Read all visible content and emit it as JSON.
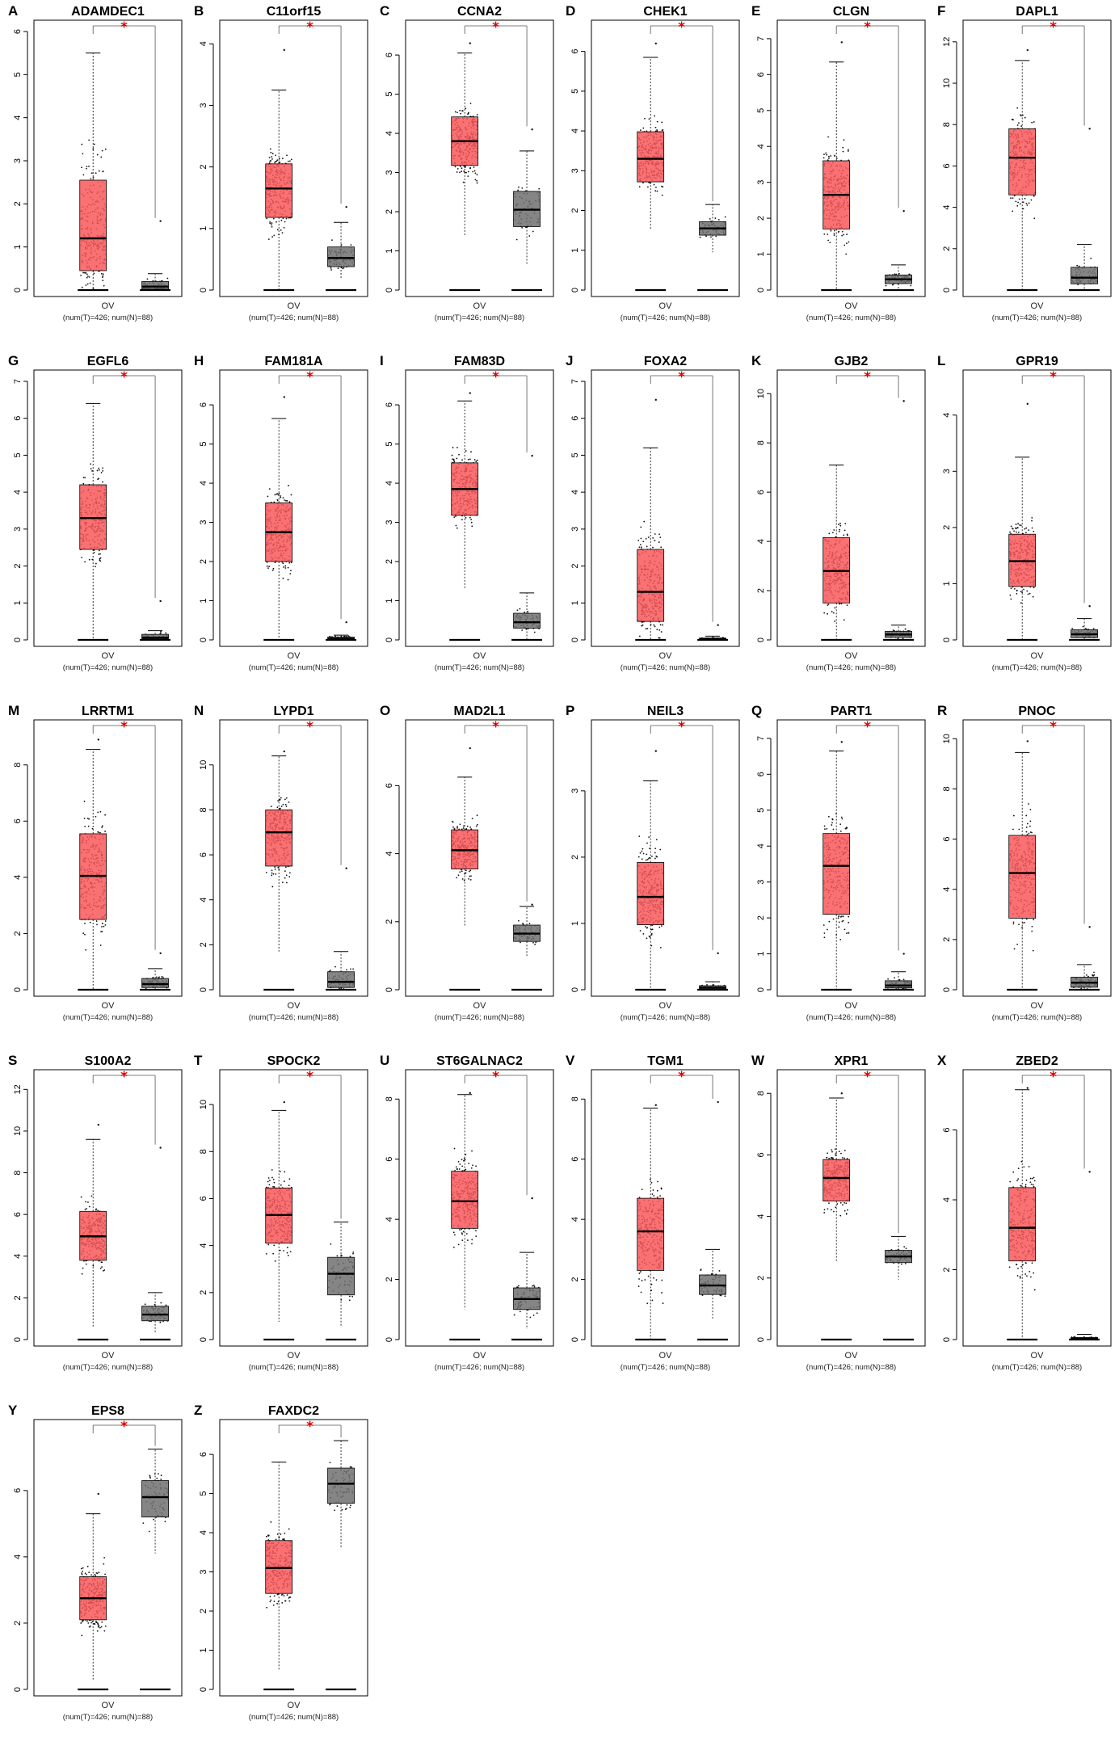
{
  "figure": {
    "accent_tumor": "#f8585a",
    "accent_normal": "#707070",
    "significance_mark": "*",
    "significance_color": "#e00000"
  },
  "chart_data": [
    {
      "label": "A",
      "type": "box",
      "title": "ADAMDEC1",
      "xlabel": "OV",
      "counts": "(num(T)=426; num(N)=88)",
      "ylim": [
        0,
        6
      ],
      "yticks": [
        0,
        1,
        2,
        3,
        4,
        5,
        6
      ],
      "series": [
        {
          "name": "T",
          "q1": 0.45,
          "median": 1.2,
          "q3": 2.55,
          "lower": 0,
          "upper": 5.5,
          "max": 5.5
        },
        {
          "name": "N",
          "q1": 0.02,
          "median": 0.08,
          "q3": 0.2,
          "lower": 0,
          "upper": 0.38,
          "max": 1.6
        }
      ]
    },
    {
      "label": "B",
      "type": "box",
      "title": "C11orf15",
      "xlabel": "OV",
      "counts": "(num(T)=426; num(N)=88)",
      "ylim": [
        0,
        4.2
      ],
      "yticks": [
        0,
        1,
        2,
        3,
        4
      ],
      "series": [
        {
          "name": "T",
          "q1": 1.18,
          "median": 1.65,
          "q3": 2.05,
          "lower": 0,
          "upper": 3.25,
          "max": 3.9
        },
        {
          "name": "N",
          "q1": 0.38,
          "median": 0.52,
          "q3": 0.7,
          "lower": 0.18,
          "upper": 1.1,
          "max": 1.35
        }
      ]
    },
    {
      "label": "C",
      "type": "box",
      "title": "CCNA2",
      "xlabel": "OV",
      "counts": "(num(T)=426; num(N)=88)",
      "ylim": [
        0,
        6.6
      ],
      "yticks": [
        0,
        1,
        2,
        3,
        4,
        5,
        6
      ],
      "series": [
        {
          "name": "T",
          "q1": 3.18,
          "median": 3.8,
          "q3": 4.42,
          "lower": 1.4,
          "upper": 6.05,
          "max": 6.3
        },
        {
          "name": "N",
          "q1": 1.62,
          "median": 2.05,
          "q3": 2.52,
          "lower": 0.65,
          "upper": 3.55,
          "max": 4.1
        }
      ]
    },
    {
      "label": "D",
      "type": "box",
      "title": "CHEK1",
      "xlabel": "OV",
      "counts": "(num(T)=426; num(N)=88)",
      "ylim": [
        0,
        6.5
      ],
      "yticks": [
        0,
        1,
        2,
        3,
        4,
        5,
        6
      ],
      "series": [
        {
          "name": "T",
          "q1": 2.72,
          "median": 3.3,
          "q3": 3.98,
          "lower": 1.5,
          "upper": 5.85,
          "max": 6.2
        },
        {
          "name": "N",
          "q1": 1.38,
          "median": 1.55,
          "q3": 1.72,
          "lower": 0.95,
          "upper": 2.15,
          "max": 2.15
        }
      ]
    },
    {
      "label": "E",
      "type": "box",
      "title": "CLGN",
      "xlabel": "OV",
      "counts": "(num(T)=426; num(N)=88)",
      "ylim": [
        0,
        7.2
      ],
      "yticks": [
        0,
        1,
        2,
        3,
        4,
        5,
        6,
        7
      ],
      "series": [
        {
          "name": "T",
          "q1": 1.7,
          "median": 2.65,
          "q3": 3.6,
          "lower": 0,
          "upper": 6.35,
          "max": 6.9
        },
        {
          "name": "N",
          "q1": 0.18,
          "median": 0.3,
          "q3": 0.42,
          "lower": 0,
          "upper": 0.7,
          "max": 2.2
        }
      ]
    },
    {
      "label": "F",
      "type": "box",
      "title": "DAPL1",
      "xlabel": "OV",
      "counts": "(num(T)=426; num(N)=88)",
      "ylim": [
        0,
        12.5
      ],
      "yticks": [
        0,
        2,
        4,
        6,
        8,
        10,
        12
      ],
      "series": [
        {
          "name": "T",
          "q1": 4.6,
          "median": 6.4,
          "q3": 7.8,
          "lower": 0,
          "upper": 11.1,
          "max": 11.6
        },
        {
          "name": "N",
          "q1": 0.3,
          "median": 0.6,
          "q3": 1.1,
          "lower": 0,
          "upper": 2.2,
          "max": 7.8
        }
      ]
    },
    {
      "label": "G",
      "type": "box",
      "title": "EGFL6",
      "xlabel": "OV",
      "counts": "(num(T)=426; num(N)=88)",
      "ylim": [
        0,
        7
      ],
      "yticks": [
        0,
        1,
        2,
        3,
        4,
        5,
        6,
        7
      ],
      "series": [
        {
          "name": "T",
          "q1": 2.45,
          "median": 3.3,
          "q3": 4.2,
          "lower": 0,
          "upper": 6.4,
          "max": 6.4
        },
        {
          "name": "N",
          "q1": 0.02,
          "median": 0.06,
          "q3": 0.15,
          "lower": 0,
          "upper": 0.25,
          "max": 1.05
        }
      ]
    },
    {
      "label": "H",
      "type": "box",
      "title": "FAM181A",
      "xlabel": "OV",
      "counts": "(num(T)=426; num(N)=88)",
      "ylim": [
        0,
        6.6
      ],
      "yticks": [
        0,
        1,
        2,
        3,
        4,
        5,
        6
      ],
      "series": [
        {
          "name": "T",
          "q1": 2.0,
          "median": 2.75,
          "q3": 3.5,
          "lower": 0,
          "upper": 5.65,
          "max": 6.2
        },
        {
          "name": "N",
          "q1": 0.0,
          "median": 0.03,
          "q3": 0.07,
          "lower": 0,
          "upper": 0.12,
          "max": 0.45
        }
      ]
    },
    {
      "label": "I",
      "type": "box",
      "title": "FAM83D",
      "xlabel": "OV",
      "counts": "(num(T)=426; num(N)=88)",
      "ylim": [
        0,
        6.6
      ],
      "yticks": [
        0,
        1,
        2,
        3,
        4,
        5,
        6
      ],
      "series": [
        {
          "name": "T",
          "q1": 3.18,
          "median": 3.85,
          "q3": 4.52,
          "lower": 1.3,
          "upper": 6.1,
          "max": 6.3
        },
        {
          "name": "N",
          "q1": 0.3,
          "median": 0.45,
          "q3": 0.68,
          "lower": 0,
          "upper": 1.2,
          "max": 4.7
        }
      ]
    },
    {
      "label": "J",
      "type": "box",
      "title": "FOXA2",
      "xlabel": "OV",
      "counts": "(num(T)=426; num(N)=88)",
      "ylim": [
        0,
        7
      ],
      "yticks": [
        0,
        1,
        2,
        3,
        4,
        5,
        6,
        7
      ],
      "series": [
        {
          "name": "T",
          "q1": 0.5,
          "median": 1.3,
          "q3": 2.45,
          "lower": 0,
          "upper": 5.2,
          "max": 6.5
        },
        {
          "name": "N",
          "q1": 0.0,
          "median": 0.02,
          "q3": 0.05,
          "lower": 0,
          "upper": 0.1,
          "max": 0.4
        }
      ]
    },
    {
      "label": "K",
      "type": "box",
      "title": "GJB2",
      "xlabel": "OV",
      "counts": "(num(T)=426; num(N)=88)",
      "ylim": [
        0,
        10.5
      ],
      "yticks": [
        0,
        2,
        4,
        6,
        8,
        10
      ],
      "series": [
        {
          "name": "T",
          "q1": 1.5,
          "median": 2.8,
          "q3": 4.15,
          "lower": 0,
          "upper": 7.1,
          "max": 7.1
        },
        {
          "name": "N",
          "q1": 0.1,
          "median": 0.22,
          "q3": 0.35,
          "lower": 0,
          "upper": 0.6,
          "max": 9.7
        }
      ]
    },
    {
      "label": "L",
      "type": "box",
      "title": "GPR19",
      "xlabel": "OV",
      "counts": "(num(T)=426; num(N)=88)",
      "ylim": [
        0,
        4.6
      ],
      "yticks": [
        0,
        1,
        2,
        3,
        4
      ],
      "series": [
        {
          "name": "T",
          "q1": 0.95,
          "median": 1.4,
          "q3": 1.88,
          "lower": 0,
          "upper": 3.25,
          "max": 4.2
        },
        {
          "name": "N",
          "q1": 0.04,
          "median": 0.1,
          "q3": 0.18,
          "lower": 0,
          "upper": 0.38,
          "max": 0.6
        }
      ]
    },
    {
      "label": "M",
      "type": "box",
      "title": "LRRTM1",
      "xlabel": "OV",
      "counts": "(num(T)=426; num(N)=88)",
      "ylim": [
        0,
        9.2
      ],
      "yticks": [
        0,
        2,
        4,
        6,
        8
      ],
      "series": [
        {
          "name": "T",
          "q1": 2.5,
          "median": 4.05,
          "q3": 5.55,
          "lower": 0,
          "upper": 8.55,
          "max": 8.9
        },
        {
          "name": "N",
          "q1": 0.08,
          "median": 0.2,
          "q3": 0.4,
          "lower": 0,
          "upper": 0.75,
          "max": 1.3
        }
      ]
    },
    {
      "label": "N",
      "type": "box",
      "title": "LYPD1",
      "xlabel": "OV",
      "counts": "(num(T)=426; num(N)=88)",
      "ylim": [
        0,
        11.5
      ],
      "yticks": [
        0,
        2,
        4,
        6,
        8,
        10
      ],
      "series": [
        {
          "name": "T",
          "q1": 5.5,
          "median": 7.0,
          "q3": 8.0,
          "lower": 1.7,
          "upper": 10.4,
          "max": 10.6
        },
        {
          "name": "N",
          "q1": 0.1,
          "median": 0.35,
          "q3": 0.8,
          "lower": 0,
          "upper": 1.7,
          "max": 5.4
        }
      ]
    },
    {
      "label": "O",
      "type": "box",
      "title": "MAD2L1",
      "xlabel": "OV",
      "counts": "(num(T)=426; num(N)=88)",
      "ylim": [
        0,
        7.6
      ],
      "yticks": [
        0,
        2,
        4,
        6
      ],
      "series": [
        {
          "name": "T",
          "q1": 3.55,
          "median": 4.1,
          "q3": 4.7,
          "lower": 1.85,
          "upper": 6.25,
          "max": 7.1
        },
        {
          "name": "N",
          "q1": 1.42,
          "median": 1.65,
          "q3": 1.9,
          "lower": 0.95,
          "upper": 2.45,
          "max": 2.5
        }
      ]
    },
    {
      "label": "P",
      "type": "box",
      "title": "NEIL3",
      "xlabel": "OV",
      "counts": "(num(T)=426; num(N)=88)",
      "ylim": [
        0,
        3.9
      ],
      "yticks": [
        0,
        1,
        2,
        3
      ],
      "series": [
        {
          "name": "T",
          "q1": 0.98,
          "median": 1.4,
          "q3": 1.92,
          "lower": 0,
          "upper": 3.15,
          "max": 3.6
        },
        {
          "name": "N",
          "q1": 0.0,
          "median": 0.03,
          "q3": 0.06,
          "lower": 0,
          "upper": 0.12,
          "max": 0.55
        }
      ]
    },
    {
      "label": "Q",
      "type": "box",
      "title": "PART1",
      "xlabel": "OV",
      "counts": "(num(T)=426; num(N)=88)",
      "ylim": [
        0,
        7.2
      ],
      "yticks": [
        0,
        1,
        2,
        3,
        4,
        5,
        6,
        7
      ],
      "series": [
        {
          "name": "T",
          "q1": 2.1,
          "median": 3.45,
          "q3": 4.35,
          "lower": 0,
          "upper": 6.65,
          "max": 6.9
        },
        {
          "name": "N",
          "q1": 0.05,
          "median": 0.12,
          "q3": 0.25,
          "lower": 0,
          "upper": 0.5,
          "max": 1.0
        }
      ]
    },
    {
      "label": "R",
      "type": "box",
      "title": "PNOC",
      "xlabel": "OV",
      "counts": "(num(T)=426; num(N)=88)",
      "ylim": [
        0,
        10.3
      ],
      "yticks": [
        0,
        2,
        4,
        6,
        8,
        10
      ],
      "series": [
        {
          "name": "T",
          "q1": 2.85,
          "median": 4.65,
          "q3": 6.15,
          "lower": 0,
          "upper": 9.45,
          "max": 9.9
        },
        {
          "name": "N",
          "q1": 0.1,
          "median": 0.28,
          "q3": 0.5,
          "lower": 0,
          "upper": 1.0,
          "max": 2.5
        }
      ]
    },
    {
      "label": "S",
      "type": "box",
      "title": "S100A2",
      "xlabel": "OV",
      "counts": "(num(T)=426; num(N)=88)",
      "ylim": [
        0,
        12.4
      ],
      "yticks": [
        0,
        2,
        4,
        6,
        8,
        10,
        12
      ],
      "series": [
        {
          "name": "T",
          "q1": 3.8,
          "median": 4.95,
          "q3": 6.15,
          "lower": 0.55,
          "upper": 9.6,
          "max": 10.3
        },
        {
          "name": "N",
          "q1": 0.9,
          "median": 1.2,
          "q3": 1.6,
          "lower": 0.3,
          "upper": 2.25,
          "max": 9.2
        }
      ]
    },
    {
      "label": "T",
      "type": "box",
      "title": "SPOCK2",
      "xlabel": "OV",
      "counts": "(num(T)=426; num(N)=88)",
      "ylim": [
        0,
        11
      ],
      "yticks": [
        0,
        2,
        4,
        6,
        8,
        10
      ],
      "series": [
        {
          "name": "T",
          "q1": 4.1,
          "median": 5.3,
          "q3": 6.45,
          "lower": 0.75,
          "upper": 9.75,
          "max": 10.1
        },
        {
          "name": "N",
          "q1": 1.9,
          "median": 2.8,
          "q3": 3.5,
          "lower": 0.55,
          "upper": 5.0,
          "max": 5.0
        }
      ]
    },
    {
      "label": "U",
      "type": "box",
      "title": "ST6GALNAC2",
      "xlabel": "OV",
      "counts": "(num(T)=426; num(N)=88)",
      "ylim": [
        0,
        8.6
      ],
      "yticks": [
        0,
        2,
        4,
        6,
        8
      ],
      "series": [
        {
          "name": "T",
          "q1": 3.7,
          "median": 4.6,
          "q3": 5.6,
          "lower": 1.0,
          "upper": 8.15,
          "max": 8.2
        },
        {
          "name": "N",
          "q1": 1.0,
          "median": 1.35,
          "q3": 1.72,
          "lower": 0.35,
          "upper": 2.9,
          "max": 4.7
        }
      ]
    },
    {
      "label": "V",
      "type": "box",
      "title": "TGM1",
      "xlabel": "OV",
      "counts": "(num(T)=426; num(N)=88)",
      "ylim": [
        0,
        8.6
      ],
      "yticks": [
        0,
        2,
        4,
        6,
        8
      ],
      "series": [
        {
          "name": "T",
          "q1": 2.3,
          "median": 3.6,
          "q3": 4.7,
          "lower": 0,
          "upper": 7.7,
          "max": 7.8
        },
        {
          "name": "N",
          "q1": 1.5,
          "median": 1.8,
          "q3": 2.15,
          "lower": 0.65,
          "upper": 3.0,
          "max": 7.9
        }
      ]
    },
    {
      "label": "W",
      "type": "box",
      "title": "XPR1",
      "xlabel": "OV",
      "counts": "(num(T)=426; num(N)=88)",
      "ylim": [
        0,
        8.4
      ],
      "yticks": [
        0,
        2,
        4,
        6,
        8
      ],
      "series": [
        {
          "name": "T",
          "q1": 4.5,
          "median": 5.25,
          "q3": 5.85,
          "lower": 2.55,
          "upper": 7.85,
          "max": 8.0
        },
        {
          "name": "N",
          "q1": 2.5,
          "median": 2.7,
          "q3": 2.9,
          "lower": 1.95,
          "upper": 3.35,
          "max": 3.35
        }
      ]
    },
    {
      "label": "X",
      "type": "box",
      "title": "ZBED2",
      "xlabel": "OV",
      "counts": "(num(T)=426; num(N)=88)",
      "ylim": [
        0,
        7.4
      ],
      "yticks": [
        0,
        2,
        4,
        6
      ],
      "series": [
        {
          "name": "T",
          "q1": 2.25,
          "median": 3.2,
          "q3": 4.35,
          "lower": 0,
          "upper": 7.15,
          "max": 7.2
        },
        {
          "name": "N",
          "q1": 0.0,
          "median": 0.02,
          "q3": 0.06,
          "lower": 0,
          "upper": 0.15,
          "max": 4.8
        }
      ]
    },
    {
      "label": "Y",
      "type": "box",
      "title": "EPS8",
      "xlabel": "OV",
      "counts": "(num(T)=426; num(N)=88)",
      "ylim": [
        0,
        7.8
      ],
      "yticks": [
        0,
        2,
        4,
        6
      ],
      "series": [
        {
          "name": "T",
          "q1": 2.1,
          "median": 2.75,
          "q3": 3.4,
          "lower": 0.3,
          "upper": 5.3,
          "max": 5.9
        },
        {
          "name": "N",
          "q1": 5.2,
          "median": 5.8,
          "q3": 6.3,
          "lower": 4.1,
          "upper": 7.25,
          "max": 7.25
        }
      ]
    },
    {
      "label": "Z",
      "type": "box",
      "title": "FAXDC2",
      "xlabel": "OV",
      "counts": "(num(T)=426; num(N)=88)",
      "ylim": [
        0,
        6.6
      ],
      "yticks": [
        0,
        1,
        2,
        3,
        4,
        5,
        6
      ],
      "series": [
        {
          "name": "T",
          "q1": 2.45,
          "median": 3.1,
          "q3": 3.8,
          "lower": 0.5,
          "upper": 5.8,
          "max": 5.8
        },
        {
          "name": "N",
          "q1": 4.75,
          "median": 5.25,
          "q3": 5.65,
          "lower": 3.6,
          "upper": 6.35,
          "max": 6.35
        }
      ]
    }
  ]
}
